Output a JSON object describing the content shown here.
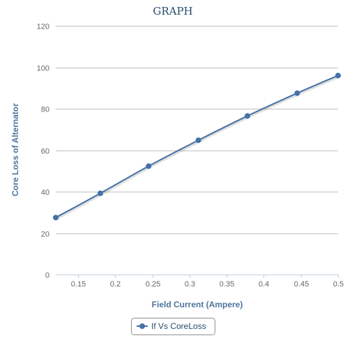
{
  "chart_data": {
    "type": "line",
    "title": "GRAPH",
    "xlabel": "Field Current (Ampere)",
    "ylabel": "Core Loss of Alternator",
    "xlim": [
      0.12,
      0.5
    ],
    "ylim": [
      0,
      120
    ],
    "x_ticks": [
      "0.15",
      "0.2",
      "0.25",
      "0.3",
      "0.35",
      "0.4",
      "0.45",
      "0.5"
    ],
    "y_ticks": [
      "0",
      "20",
      "40",
      "60",
      "80",
      "100",
      "120"
    ],
    "grid": "horizontal",
    "legend": "bottom-center",
    "series": [
      {
        "name": "If Vs CoreLoss",
        "color": "#4572a7",
        "x": [
          0.12,
          0.18,
          0.245,
          0.312,
          0.378,
          0.445,
          0.5
        ],
        "y": [
          27.5,
          39.2,
          52.3,
          64.8,
          76.5,
          87.5,
          96
        ]
      }
    ]
  }
}
